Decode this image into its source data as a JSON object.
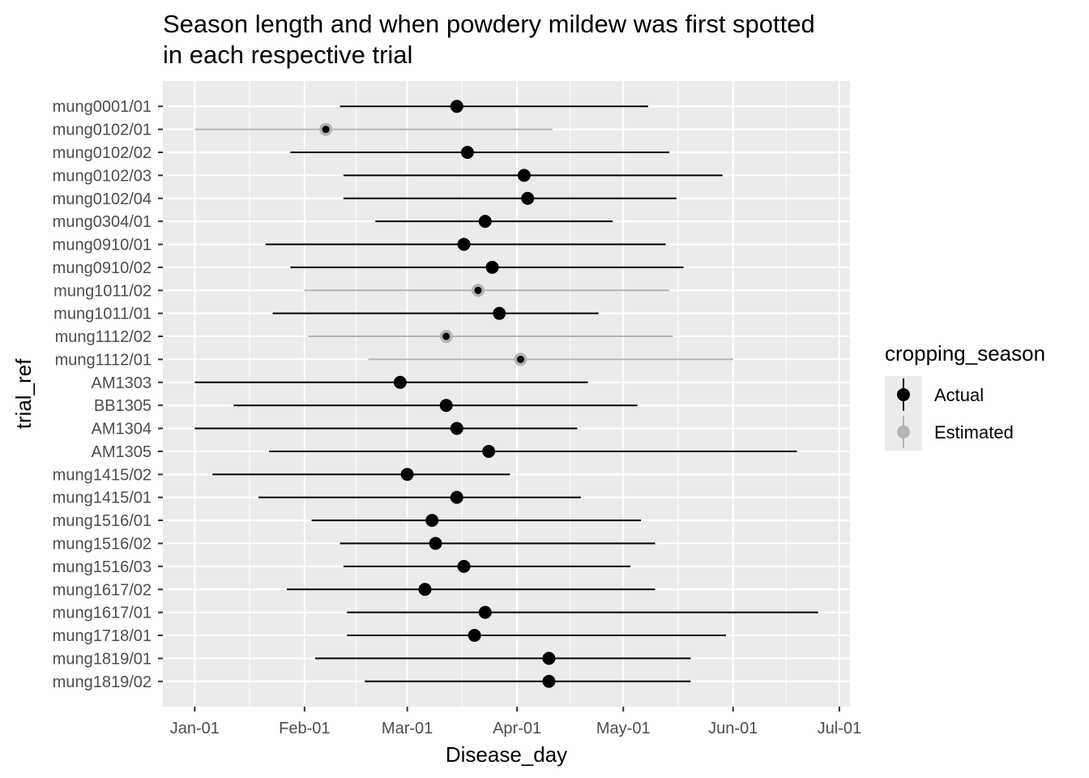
{
  "chart_data": {
    "type": "errorbar-dot",
    "title": "Season length and when powdery mildew was first spotted in each respective trial",
    "title_lines": [
      "Season length and when powdery mildew was first spotted",
      "in each respective trial"
    ],
    "xlabel": "Disease_day",
    "ylabel": "trial_ref",
    "x_ticks": [
      {
        "label": "Jan-01",
        "date": "2000-01-01"
      },
      {
        "label": "Feb-01",
        "date": "2000-02-01"
      },
      {
        "label": "Mar-01",
        "date": "2000-03-01"
      },
      {
        "label": "Apr-01",
        "date": "2000-04-01"
      },
      {
        "label": "May-01",
        "date": "2000-05-01"
      },
      {
        "label": "Jun-01",
        "date": "2000-06-01"
      },
      {
        "label": "Jul-01",
        "date": "2000-07-01"
      }
    ],
    "xlim": [
      "1999-12-23",
      "2000-07-04"
    ],
    "grid": true,
    "legend": {
      "title": "cropping_season",
      "position": "right",
      "entries": [
        {
          "label": "Actual",
          "color": "#000000"
        },
        {
          "label": "Estimated",
          "color": "#b3b3b3"
        }
      ]
    },
    "trials": [
      {
        "name": "mung0001/01",
        "season": "Actual",
        "start": "2000-02-11",
        "disease_day": "2000-03-15",
        "end": "2000-05-08"
      },
      {
        "name": "mung0102/01",
        "season": "Estimated",
        "start": "2000-01-01",
        "disease_day": "2000-02-07",
        "end": "2000-04-11"
      },
      {
        "name": "mung0102/02",
        "season": "Actual",
        "start": "2000-01-28",
        "disease_day": "2000-03-18",
        "end": "2000-05-14"
      },
      {
        "name": "mung0102/03",
        "season": "Actual",
        "start": "2000-02-12",
        "disease_day": "2000-04-03",
        "end": "2000-05-29"
      },
      {
        "name": "mung0102/04",
        "season": "Actual",
        "start": "2000-02-12",
        "disease_day": "2000-04-04",
        "end": "2000-05-16"
      },
      {
        "name": "mung0304/01",
        "season": "Actual",
        "start": "2000-02-21",
        "disease_day": "2000-03-23",
        "end": "2000-04-28"
      },
      {
        "name": "mung0910/01",
        "season": "Actual",
        "start": "2000-01-21",
        "disease_day": "2000-03-17",
        "end": "2000-05-13"
      },
      {
        "name": "mung0910/02",
        "season": "Actual",
        "start": "2000-01-28",
        "disease_day": "2000-03-25",
        "end": "2000-05-18"
      },
      {
        "name": "mung1011/02",
        "season": "Estimated",
        "start": "2000-02-01",
        "disease_day": "2000-03-21",
        "end": "2000-05-14"
      },
      {
        "name": "mung1011/01",
        "season": "Actual",
        "start": "2000-01-23",
        "disease_day": "2000-03-27",
        "end": "2000-04-24"
      },
      {
        "name": "mung1112/02",
        "season": "Estimated",
        "start": "2000-02-02",
        "disease_day": "2000-03-12",
        "end": "2000-05-15"
      },
      {
        "name": "mung1112/01",
        "season": "Estimated",
        "start": "2000-02-19",
        "disease_day": "2000-04-02",
        "end": "2000-06-01"
      },
      {
        "name": "AM1303",
        "season": "Actual",
        "start": "2000-01-01",
        "disease_day": "2000-02-28",
        "end": "2000-04-21"
      },
      {
        "name": "BB1305",
        "season": "Actual",
        "start": "2000-01-12",
        "disease_day": "2000-03-12",
        "end": "2000-05-05"
      },
      {
        "name": "AM1304",
        "season": "Actual",
        "start": "2000-01-01",
        "disease_day": "2000-03-15",
        "end": "2000-04-18"
      },
      {
        "name": "AM1305",
        "season": "Actual",
        "start": "2000-01-22",
        "disease_day": "2000-03-24",
        "end": "2000-06-19"
      },
      {
        "name": "mung1415/02",
        "season": "Actual",
        "start": "2000-01-06",
        "disease_day": "2000-03-01",
        "end": "2000-03-30"
      },
      {
        "name": "mung1415/01",
        "season": "Actual",
        "start": "2000-01-19",
        "disease_day": "2000-03-15",
        "end": "2000-04-19"
      },
      {
        "name": "mung1516/01",
        "season": "Actual",
        "start": "2000-02-03",
        "disease_day": "2000-03-08",
        "end": "2000-05-06"
      },
      {
        "name": "mung1516/02",
        "season": "Actual",
        "start": "2000-02-11",
        "disease_day": "2000-03-09",
        "end": "2000-05-10"
      },
      {
        "name": "mung1516/03",
        "season": "Actual",
        "start": "2000-02-12",
        "disease_day": "2000-03-17",
        "end": "2000-05-03"
      },
      {
        "name": "mung1617/02",
        "season": "Actual",
        "start": "2000-01-27",
        "disease_day": "2000-03-06",
        "end": "2000-05-10"
      },
      {
        "name": "mung1617/01",
        "season": "Actual",
        "start": "2000-02-13",
        "disease_day": "2000-03-23",
        "end": "2000-06-25"
      },
      {
        "name": "mung1718/01",
        "season": "Actual",
        "start": "2000-02-13",
        "disease_day": "2000-03-20",
        "end": "2000-05-30"
      },
      {
        "name": "mung1819/01",
        "season": "Actual",
        "start": "2000-02-04",
        "disease_day": "2000-04-10",
        "end": "2000-05-20"
      },
      {
        "name": "mung1819/02",
        "season": "Actual",
        "start": "2000-02-18",
        "disease_day": "2000-04-10",
        "end": "2000-05-20"
      }
    ]
  }
}
